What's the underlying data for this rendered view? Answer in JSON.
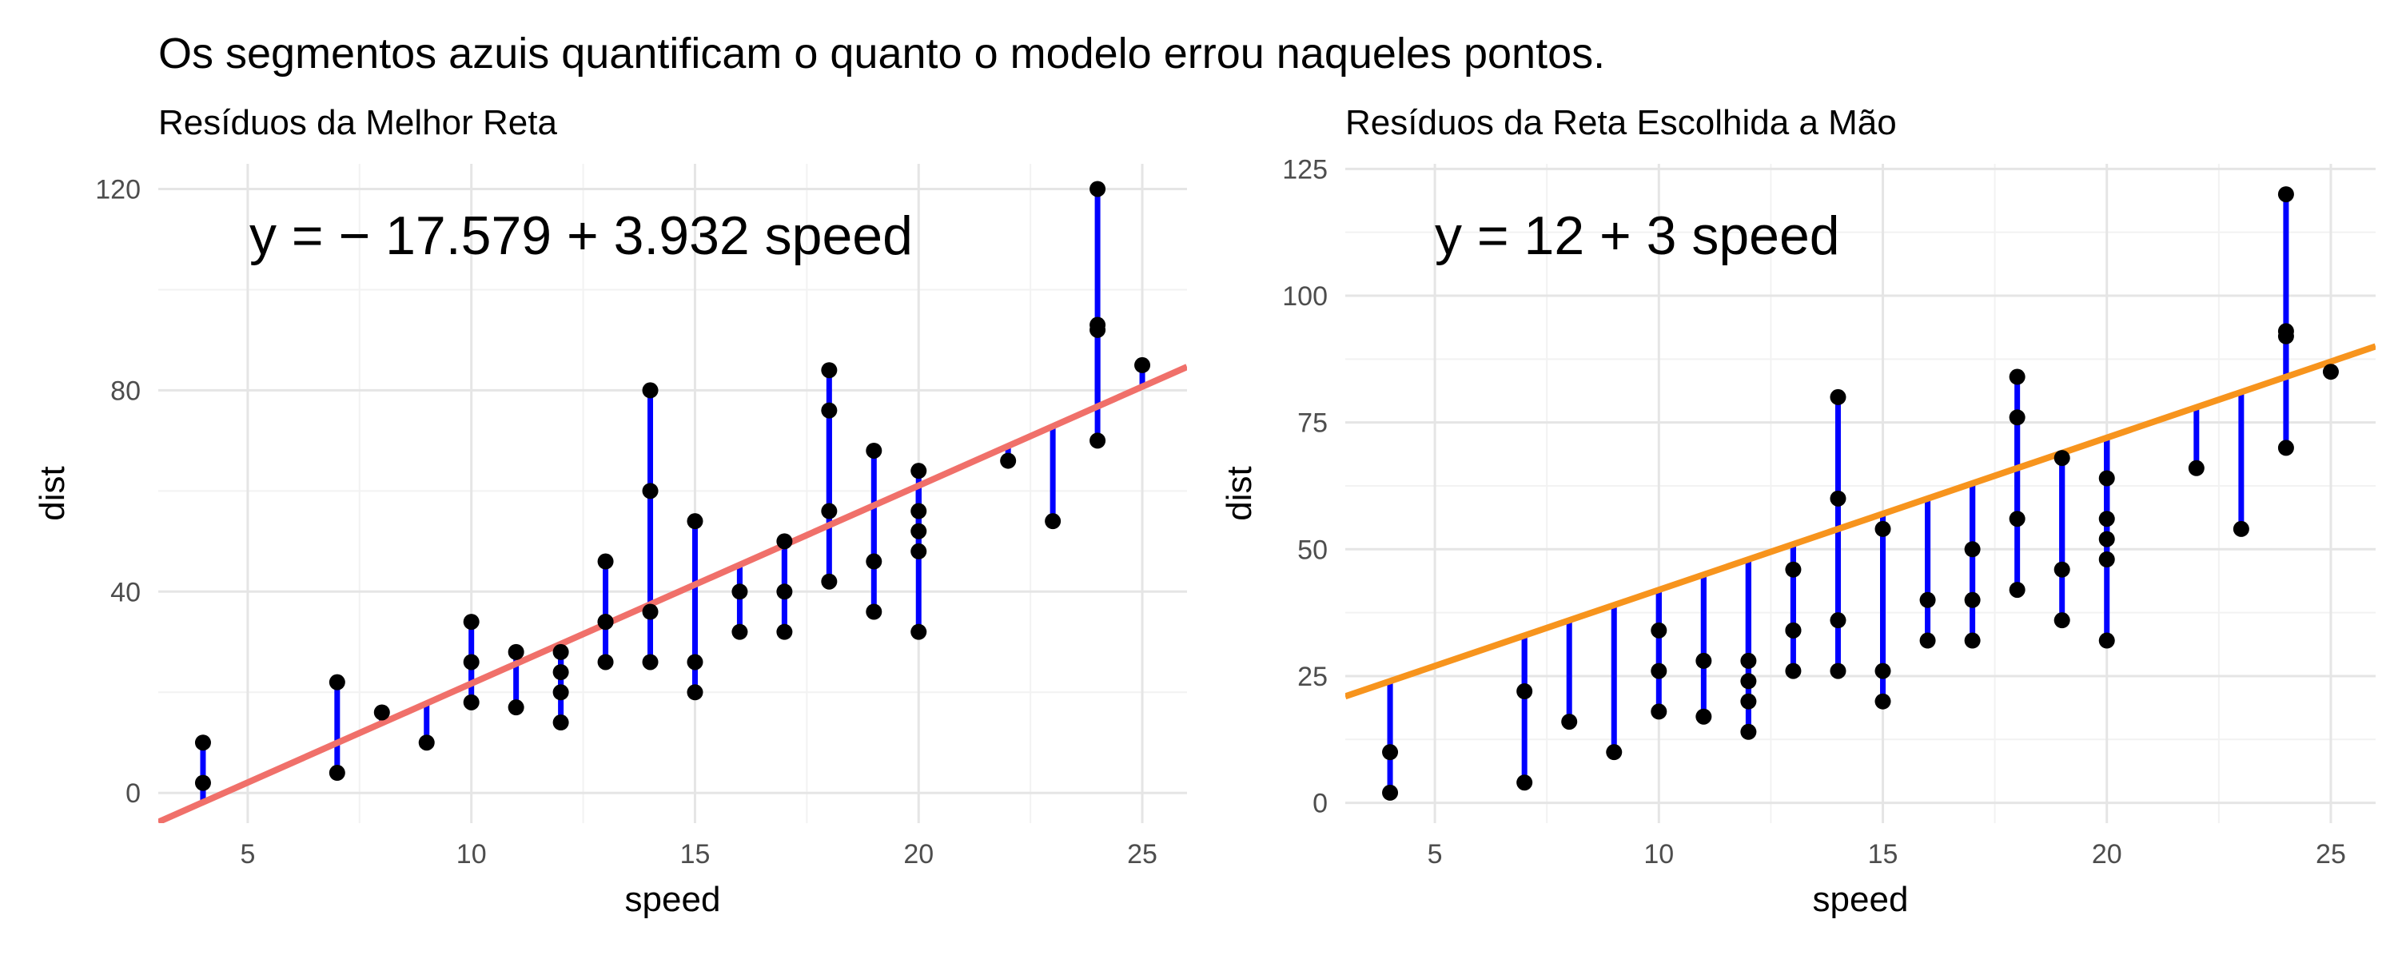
{
  "page_title": "Os segmentos azuis quantificam o quanto o modelo errou naqueles pontos.",
  "colors": {
    "residual": "#0000ff",
    "point": "#000000",
    "grid_major": "#e5e5e5",
    "grid_minor": "#f2f2f2"
  },
  "chart_data": [
    {
      "type": "scatter",
      "title": "Resíduos da Melhor Reta",
      "xlabel": "speed",
      "ylabel": "dist",
      "annotation": "y = − 17.579 + 3.932 speed",
      "line": {
        "intercept": -17.579,
        "slope": 3.932,
        "color": "#f0706a"
      },
      "xlim": [
        3,
        26
      ],
      "ylim": [
        -6,
        125
      ],
      "xticks": [
        5,
        10,
        15,
        20,
        25
      ],
      "yticks": [
        0,
        40,
        80,
        120
      ],
      "grid": true,
      "x": [
        4,
        4,
        7,
        7,
        8,
        9,
        10,
        10,
        10,
        11,
        11,
        12,
        12,
        12,
        12,
        13,
        13,
        13,
        13,
        14,
        14,
        14,
        14,
        15,
        15,
        15,
        16,
        16,
        17,
        17,
        17,
        18,
        18,
        18,
        18,
        19,
        19,
        19,
        20,
        20,
        20,
        20,
        20,
        22,
        23,
        24,
        24,
        24,
        24,
        25
      ],
      "y": [
        2,
        10,
        4,
        22,
        16,
        10,
        18,
        26,
        34,
        17,
        28,
        14,
        20,
        24,
        28,
        26,
        34,
        34,
        46,
        26,
        36,
        60,
        80,
        20,
        26,
        54,
        32,
        40,
        32,
        40,
        50,
        42,
        56,
        76,
        84,
        36,
        46,
        68,
        32,
        48,
        52,
        56,
        64,
        66,
        54,
        70,
        92,
        93,
        120,
        85
      ]
    },
    {
      "type": "scatter",
      "title": "Resíduos da Reta Escolhida a Mão",
      "xlabel": "speed",
      "ylabel": "dist",
      "annotation": "y = 12 + 3 speed",
      "line": {
        "intercept": 12,
        "slope": 3,
        "color": "#f7941d"
      },
      "xlim": [
        3,
        26
      ],
      "ylim": [
        -4,
        126
      ],
      "xticks": [
        5,
        10,
        15,
        20,
        25
      ],
      "yticks": [
        0,
        25,
        50,
        75,
        100,
        125
      ],
      "grid": true,
      "x": [
        4,
        4,
        7,
        7,
        8,
        9,
        10,
        10,
        10,
        11,
        11,
        12,
        12,
        12,
        12,
        13,
        13,
        13,
        13,
        14,
        14,
        14,
        14,
        15,
        15,
        15,
        16,
        16,
        17,
        17,
        17,
        18,
        18,
        18,
        18,
        19,
        19,
        19,
        20,
        20,
        20,
        20,
        20,
        22,
        23,
        24,
        24,
        24,
        24,
        25
      ],
      "y": [
        2,
        10,
        4,
        22,
        16,
        10,
        18,
        26,
        34,
        17,
        28,
        14,
        20,
        24,
        28,
        26,
        34,
        34,
        46,
        26,
        36,
        60,
        80,
        20,
        26,
        54,
        32,
        40,
        32,
        40,
        50,
        42,
        56,
        76,
        84,
        36,
        46,
        68,
        32,
        48,
        52,
        56,
        64,
        66,
        54,
        70,
        92,
        93,
        120,
        85
      ]
    }
  ]
}
